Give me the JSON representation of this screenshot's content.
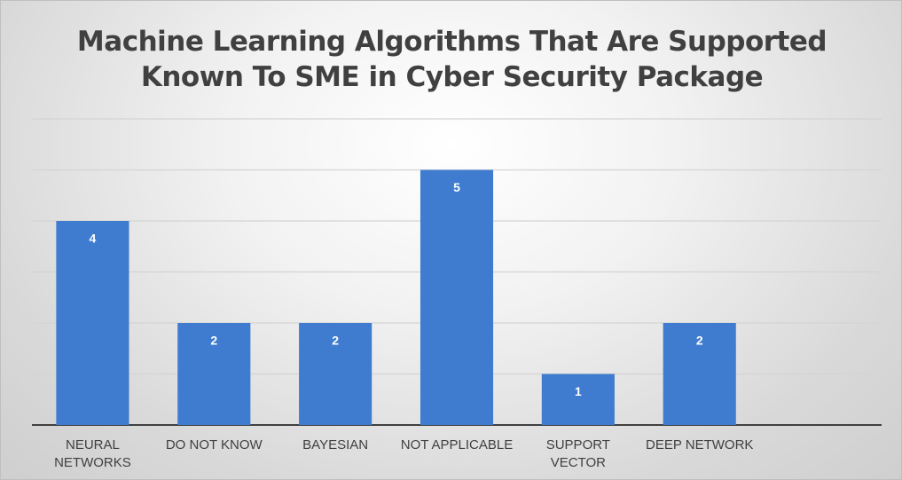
{
  "chart_data": {
    "type": "bar",
    "title": "Machine Learning Algorithms That Are Supported Known To SME in Cyber Security Package",
    "categories": [
      "NEURAL NETWORKS",
      "DO NOT KNOW",
      "BAYESIAN",
      "NOT APPLICABLE",
      "SUPPORT VECTOR",
      "DEEP NETWORK",
      null
    ],
    "values": [
      4,
      2,
      2,
      5,
      1,
      2,
      null
    ],
    "color": "#3f7ccf",
    "ylim": [
      0,
      6
    ],
    "yticks": [
      0,
      1,
      2,
      3,
      4,
      5,
      6
    ],
    "grid": true
  }
}
